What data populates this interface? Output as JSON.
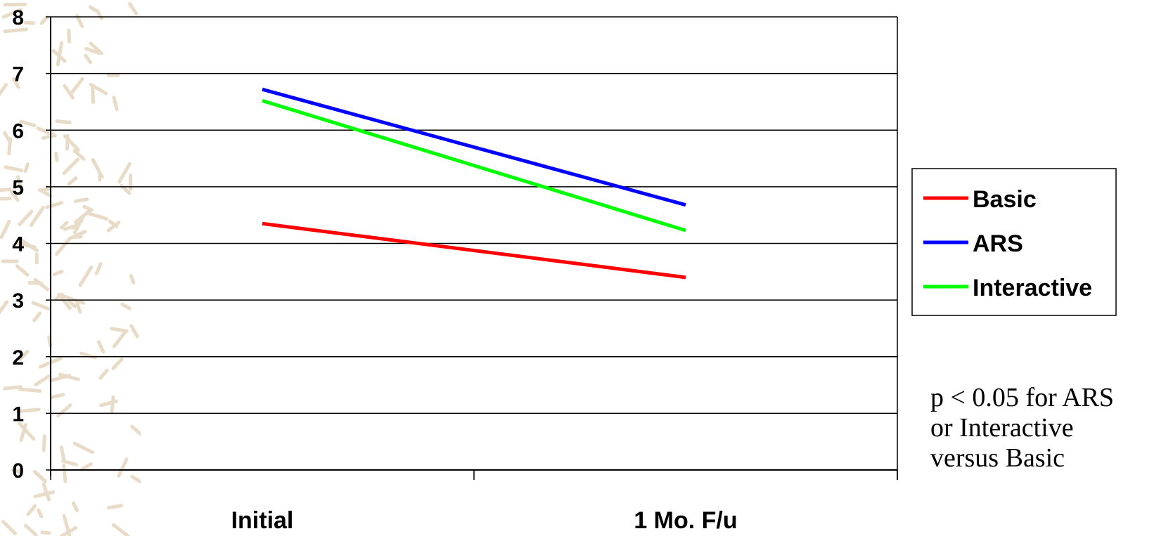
{
  "chart_data": {
    "type": "line",
    "categories": [
      "Initial",
      "1 Mo. F/u"
    ],
    "series": [
      {
        "name": "Basic",
        "values": [
          4.35,
          3.4
        ],
        "color": "#ff0000"
      },
      {
        "name": "ARS",
        "values": [
          6.72,
          4.68
        ],
        "color": "#0000ff"
      },
      {
        "name": "Interactive",
        "values": [
          6.52,
          4.23
        ],
        "color": "#00ff00"
      }
    ],
    "ylim": [
      0,
      8
    ],
    "yticks": [
      "0",
      "1",
      "2",
      "3",
      "4",
      "5",
      "6",
      "7",
      "8"
    ],
    "grid": true,
    "legend_position": "right"
  },
  "note": {
    "lines": [
      "p < 0.05 for ARS",
      "or Interactive",
      "versus Basic"
    ]
  },
  "colors": {
    "background_pattern": "#e8dcc8",
    "axis": "#000000"
  }
}
